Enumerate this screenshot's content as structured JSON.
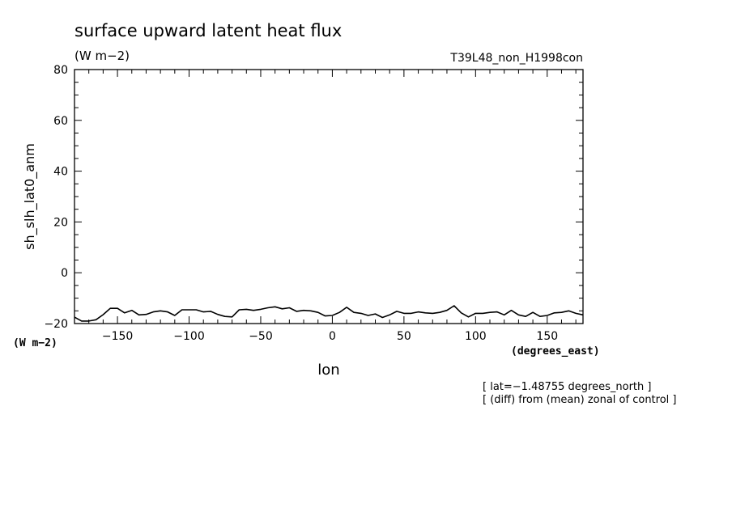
{
  "chart_data": {
    "type": "line",
    "title": "surface upward latent heat flux",
    "title_units": "(W m−2)",
    "experiment": "T39L48_non_H1998con",
    "ylabel": "sh_slh_lat0_anm",
    "y_units": "(W m−2)",
    "xlabel": "lon",
    "x_units": "(degrees_east)",
    "xlim": [
      -180,
      175
    ],
    "ylim": [
      -20,
      80
    ],
    "x_ticks": [
      -150,
      -100,
      -50,
      0,
      50,
      100,
      150
    ],
    "x_tick_labels": [
      "−150",
      "−100",
      "−50",
      "0",
      "50",
      "100",
      "150"
    ],
    "y_ticks": [
      -20,
      0,
      20,
      40,
      60,
      80
    ],
    "y_tick_labels": [
      "−20",
      "0",
      "20",
      "40",
      "60",
      "80"
    ],
    "grid": false,
    "line_color": "#000000",
    "annotations": [
      "[ lat=−1.48755 degrees_north ]",
      "[ (diff) from (mean) zonal of control ]"
    ],
    "series": [
      {
        "x": [
          -180,
          -175,
          -170,
          -165,
          -160,
          -155,
          -150,
          -145,
          -140,
          -135,
          -130,
          -125,
          -120,
          -115,
          -110,
          -105,
          -100,
          -95,
          -90,
          -85,
          -80,
          -75,
          -70,
          -65,
          -60,
          -55,
          -50,
          -45,
          -40,
          -35,
          -30,
          -25,
          -20,
          -15,
          -10,
          -5,
          0,
          5,
          10,
          15,
          20,
          25,
          30,
          35,
          40,
          45,
          50,
          55,
          60,
          65,
          70,
          75,
          80,
          85,
          90,
          95,
          100,
          105,
          110,
          115,
          120,
          125,
          130,
          135,
          140,
          145,
          150,
          155,
          160,
          165,
          170,
          175
        ],
        "y": [
          -17.5,
          -19.0,
          -19.0,
          -18.5,
          -16.5,
          -14.0,
          -14.0,
          -15.8,
          -14.8,
          -16.6,
          -16.4,
          -15.4,
          -15.0,
          -15.4,
          -16.8,
          -14.6,
          -14.6,
          -14.6,
          -15.4,
          -15.2,
          -16.4,
          -17.2,
          -17.4,
          -14.6,
          -14.4,
          -14.8,
          -14.4,
          -13.8,
          -13.4,
          -14.2,
          -13.8,
          -15.2,
          -14.8,
          -15.0,
          -15.6,
          -17.0,
          -16.8,
          -15.6,
          -13.6,
          -15.6,
          -16.0,
          -16.8,
          -16.2,
          -17.6,
          -16.6,
          -15.2,
          -16.0,
          -16.0,
          -15.4,
          -15.8,
          -16.0,
          -15.6,
          -14.8,
          -13.0,
          -15.8,
          -17.4,
          -16.0,
          -16.0,
          -15.6,
          -15.4,
          -16.6,
          -14.8,
          -16.6,
          -17.2,
          -15.6,
          -17.2,
          -16.8,
          -15.8,
          -15.6,
          -15.0,
          -16.0,
          -16.6
        ]
      }
    ]
  }
}
